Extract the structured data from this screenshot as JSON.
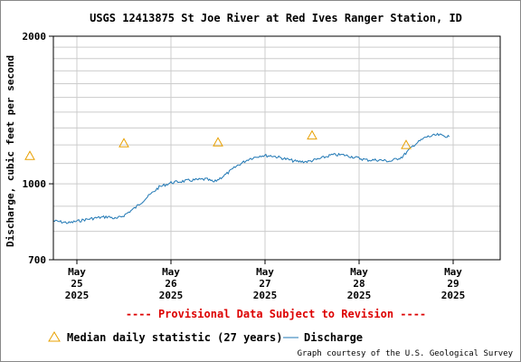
{
  "chart_data": {
    "type": "line",
    "title": "USGS 12413875 St Joe River at Red Ives Ranger Station, ID",
    "ylabel": "Discharge, cubic feet per second",
    "xlabel": "",
    "y_scale": "log",
    "ylim": [
      700,
      2000
    ],
    "y_ticks": [
      700,
      1000,
      2000
    ],
    "y_tick_labels": [
      "700",
      "1000",
      "2000"
    ],
    "grid": true,
    "x_range": [
      "2025-05-24T18:00",
      "2025-05-29T12:00"
    ],
    "x_ticks": [
      {
        "date": "2025-05-25",
        "month": "May",
        "day": "25",
        "year": "2025"
      },
      {
        "date": "2025-05-26",
        "month": "May",
        "day": "26",
        "year": "2025"
      },
      {
        "date": "2025-05-27",
        "month": "May",
        "day": "27",
        "year": "2025"
      },
      {
        "date": "2025-05-28",
        "month": "May",
        "day": "28",
        "year": "2025"
      },
      {
        "date": "2025-05-29",
        "month": "May",
        "day": "29",
        "year": "2025"
      }
    ],
    "series": [
      {
        "name": "Discharge",
        "color": "#1f77b4",
        "points": [
          [
            "2025-05-24T18:00",
            840
          ],
          [
            "2025-05-24T22:00",
            832
          ],
          [
            "2025-05-25T02:00",
            845
          ],
          [
            "2025-05-25T05:00",
            852
          ],
          [
            "2025-05-25T08:00",
            857
          ],
          [
            "2025-05-25T10:00",
            848
          ],
          [
            "2025-05-25T12:00",
            862
          ],
          [
            "2025-05-25T15:00",
            895
          ],
          [
            "2025-05-25T18:00",
            940
          ],
          [
            "2025-05-25T21:00",
            985
          ],
          [
            "2025-05-26T00:00",
            1005
          ],
          [
            "2025-05-26T03:00",
            1012
          ],
          [
            "2025-05-26T06:00",
            1018
          ],
          [
            "2025-05-26T09:00",
            1022
          ],
          [
            "2025-05-26T11:00",
            1008
          ],
          [
            "2025-05-26T14:00",
            1045
          ],
          [
            "2025-05-26T17:00",
            1090
          ],
          [
            "2025-05-26T20:00",
            1125
          ],
          [
            "2025-05-26T23:00",
            1142
          ],
          [
            "2025-05-27T02:00",
            1140
          ],
          [
            "2025-05-27T05:00",
            1125
          ],
          [
            "2025-05-27T08:00",
            1110
          ],
          [
            "2025-05-27T11:00",
            1110
          ],
          [
            "2025-05-27T14:00",
            1125
          ],
          [
            "2025-05-27T17:00",
            1145
          ],
          [
            "2025-05-27T20:00",
            1145
          ],
          [
            "2025-05-27T23:00",
            1132
          ],
          [
            "2025-05-28T02:00",
            1118
          ],
          [
            "2025-05-28T05:00",
            1118
          ],
          [
            "2025-05-28T08:00",
            1112
          ],
          [
            "2025-05-28T11:00",
            1135
          ],
          [
            "2025-05-28T14:00",
            1200
          ],
          [
            "2025-05-28T17:00",
            1245
          ],
          [
            "2025-05-28T20:00",
            1258
          ],
          [
            "2025-05-28T23:00",
            1248
          ]
        ]
      }
    ],
    "median_daily": {
      "name": "Median daily statistic (27 years)",
      "color": "#e8a000",
      "points": [
        [
          "2025-05-24T12:00",
          1140
        ],
        [
          "2025-05-25T12:00",
          1210
        ],
        [
          "2025-05-26T12:00",
          1215
        ],
        [
          "2025-05-27T12:00",
          1255
        ],
        [
          "2025-05-28T12:00",
          1200
        ]
      ]
    }
  },
  "notice": "---- Provisional Data Subject to Revision ----",
  "legend": {
    "median_label": "Median daily statistic (27 years)",
    "discharge_label": "Discharge"
  },
  "credit": "Graph courtesy of the U.S. Geological Survey",
  "colors": {
    "notice": "#dd0000",
    "grid": "#cccccc",
    "axis": "#000000"
  }
}
